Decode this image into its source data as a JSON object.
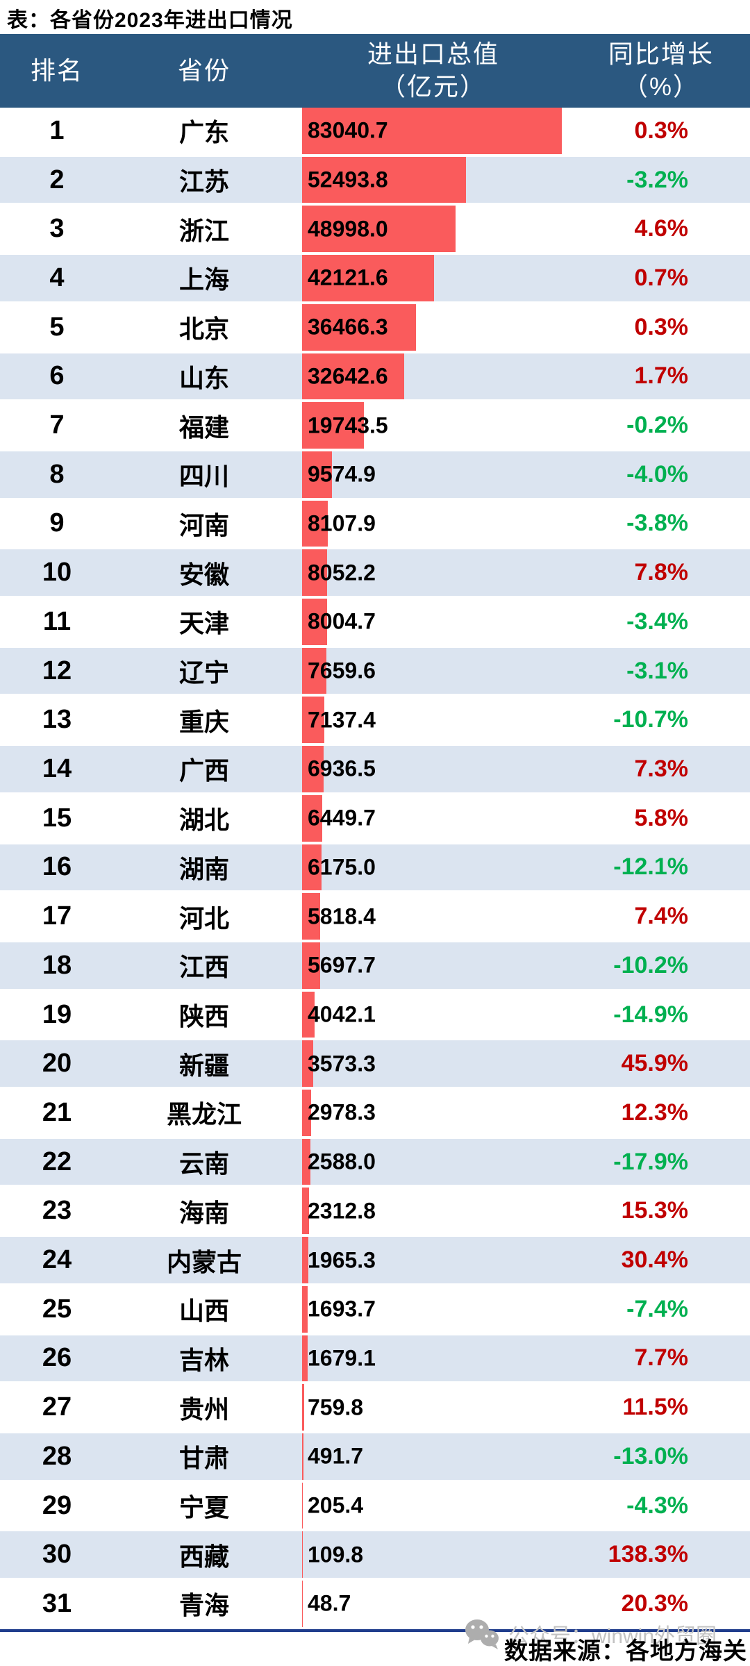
{
  "title": "表：各省份2023年进出口情况",
  "header": {
    "rank": "排名",
    "province": "省份",
    "value_line1": "进出口总值",
    "value_line2": "（亿元）",
    "growth_line1": "同比增长",
    "growth_line2": "（%）"
  },
  "chart_data": {
    "type": "bar",
    "orientation": "horizontal",
    "title": "表：各省份2023年进出口情况",
    "columns": [
      "排名",
      "省份",
      "进出口总值（亿元）",
      "同比增长（%）"
    ],
    "bar_max_value": 83040.7,
    "rows": [
      {
        "rank": "1",
        "province": "广东",
        "value": "83040.7",
        "growth": "0.3%"
      },
      {
        "rank": "2",
        "province": "江苏",
        "value": "52493.8",
        "growth": "-3.2%"
      },
      {
        "rank": "3",
        "province": "浙江",
        "value": "48998.0",
        "growth": "4.6%"
      },
      {
        "rank": "4",
        "province": "上海",
        "value": "42121.6",
        "growth": "0.7%"
      },
      {
        "rank": "5",
        "province": "北京",
        "value": "36466.3",
        "growth": "0.3%"
      },
      {
        "rank": "6",
        "province": "山东",
        "value": "32642.6",
        "growth": "1.7%"
      },
      {
        "rank": "7",
        "province": "福建",
        "value": "19743.5",
        "growth": "-0.2%"
      },
      {
        "rank": "8",
        "province": "四川",
        "value": "9574.9",
        "growth": "-4.0%"
      },
      {
        "rank": "9",
        "province": "河南",
        "value": "8107.9",
        "growth": "-3.8%"
      },
      {
        "rank": "10",
        "province": "安徽",
        "value": "8052.2",
        "growth": "7.8%"
      },
      {
        "rank": "11",
        "province": "天津",
        "value": "8004.7",
        "growth": "-3.4%"
      },
      {
        "rank": "12",
        "province": "辽宁",
        "value": "7659.6",
        "growth": "-3.1%"
      },
      {
        "rank": "13",
        "province": "重庆",
        "value": "7137.4",
        "growth": "-10.7%"
      },
      {
        "rank": "14",
        "province": "广西",
        "value": "6936.5",
        "growth": "7.3%"
      },
      {
        "rank": "15",
        "province": "湖北",
        "value": "6449.7",
        "growth": "5.8%"
      },
      {
        "rank": "16",
        "province": "湖南",
        "value": "6175.0",
        "growth": "-12.1%"
      },
      {
        "rank": "17",
        "province": "河北",
        "value": "5818.4",
        "growth": "7.4%"
      },
      {
        "rank": "18",
        "province": "江西",
        "value": "5697.7",
        "growth": "-10.2%"
      },
      {
        "rank": "19",
        "province": "陕西",
        "value": "4042.1",
        "growth": "-14.9%"
      },
      {
        "rank": "20",
        "province": "新疆",
        "value": "3573.3",
        "growth": "45.9%"
      },
      {
        "rank": "21",
        "province": "黑龙江",
        "value": "2978.3",
        "growth": "12.3%"
      },
      {
        "rank": "22",
        "province": "云南",
        "value": "2588.0",
        "growth": "-17.9%"
      },
      {
        "rank": "23",
        "province": "海南",
        "value": "2312.8",
        "growth": "15.3%"
      },
      {
        "rank": "24",
        "province": "内蒙古",
        "value": "1965.3",
        "growth": "30.4%"
      },
      {
        "rank": "25",
        "province": "山西",
        "value": "1693.7",
        "growth": "-7.4%"
      },
      {
        "rank": "26",
        "province": "吉林",
        "value": "1679.1",
        "growth": "7.7%"
      },
      {
        "rank": "27",
        "province": "贵州",
        "value": "759.8",
        "growth": "11.5%"
      },
      {
        "rank": "28",
        "province": "甘肃",
        "value": "491.7",
        "growth": "-13.0%"
      },
      {
        "rank": "29",
        "province": "宁夏",
        "value": "205.4",
        "growth": "-4.3%"
      },
      {
        "rank": "30",
        "province": "西藏",
        "value": "109.8",
        "growth": "138.3%"
      },
      {
        "rank": "31",
        "province": "青海",
        "value": "48.7",
        "growth": "20.3%"
      }
    ]
  },
  "footer": {
    "source": "数据来源：各地方海关",
    "watermark": "公众号：winwin外贸圈"
  },
  "colors": {
    "header_bg": "#2B5880",
    "header_text": "#FFFFFF",
    "row_alt_bg": "#DBE4F0",
    "bar_red": "#FA5B5C",
    "growth_positive": "#C00000",
    "growth_negative": "#00B050",
    "divider_blue": "#1F3C8C",
    "watermark_gray": "#C2C2C2",
    "body_text": "#000000"
  }
}
